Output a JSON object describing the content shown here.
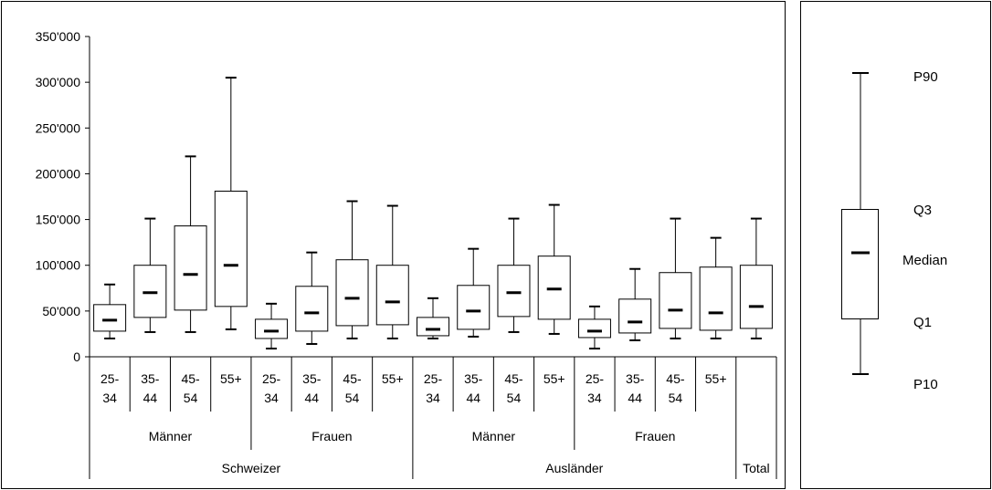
{
  "chart_data": {
    "type": "box",
    "y_ticks": [
      "0",
      "50'000",
      "100'000",
      "150'000",
      "200'000",
      "250'000",
      "300'000",
      "350'000"
    ],
    "ylim": [
      0,
      350000
    ],
    "grid": false,
    "boxes": [
      {
        "age": [
          "25-",
          "34"
        ],
        "p10": 20000,
        "q1": 28000,
        "median": 40000,
        "q3": 57000,
        "p90": 79000
      },
      {
        "age": [
          "35-",
          "44"
        ],
        "p10": 27000,
        "q1": 43000,
        "median": 70000,
        "q3": 100000,
        "p90": 151000
      },
      {
        "age": [
          "45-",
          "54"
        ],
        "p10": 27000,
        "q1": 51000,
        "median": 90000,
        "q3": 143000,
        "p90": 219000
      },
      {
        "age": [
          "55+"
        ],
        "p10": 30000,
        "q1": 55000,
        "median": 100000,
        "q3": 181000,
        "p90": 305000
      },
      {
        "age": [
          "25-",
          "34"
        ],
        "p10": 9000,
        "q1": 20000,
        "median": 28000,
        "q3": 41000,
        "p90": 58000
      },
      {
        "age": [
          "35-",
          "44"
        ],
        "p10": 14000,
        "q1": 28000,
        "median": 48000,
        "q3": 77000,
        "p90": 114000
      },
      {
        "age": [
          "45-",
          "54"
        ],
        "p10": 20000,
        "q1": 34000,
        "median": 64000,
        "q3": 106000,
        "p90": 170000
      },
      {
        "age": [
          "55+"
        ],
        "p10": 20000,
        "q1": 35000,
        "median": 60000,
        "q3": 100000,
        "p90": 165000
      },
      {
        "age": [
          "25-",
          "34"
        ],
        "p10": 20000,
        "q1": 23000,
        "median": 30000,
        "q3": 43000,
        "p90": 64000
      },
      {
        "age": [
          "35-",
          "44"
        ],
        "p10": 22000,
        "q1": 30000,
        "median": 50000,
        "q3": 78000,
        "p90": 118000
      },
      {
        "age": [
          "45-",
          "54"
        ],
        "p10": 27000,
        "q1": 44000,
        "median": 70000,
        "q3": 100000,
        "p90": 151000
      },
      {
        "age": [
          "55+"
        ],
        "p10": 25000,
        "q1": 41000,
        "median": 74000,
        "q3": 110000,
        "p90": 166000
      },
      {
        "age": [
          "25-",
          "34"
        ],
        "p10": 9000,
        "q1": 21000,
        "median": 28000,
        "q3": 41000,
        "p90": 55000
      },
      {
        "age": [
          "35-",
          "44"
        ],
        "p10": 18000,
        "q1": 26000,
        "median": 38000,
        "q3": 63000,
        "p90": 96000
      },
      {
        "age": [
          "45-",
          "54"
        ],
        "p10": 20000,
        "q1": 31000,
        "median": 51000,
        "q3": 92000,
        "p90": 151000
      },
      {
        "age": [
          "55+"
        ],
        "p10": 20000,
        "q1": 29000,
        "median": 48000,
        "q3": 98000,
        "p90": 130000
      },
      {
        "age": [
          ""
        ],
        "p10": 20000,
        "q1": 31000,
        "median": 55000,
        "q3": 100000,
        "p90": 151000
      }
    ],
    "sex_groups": [
      {
        "label": "Männer",
        "span": 4
      },
      {
        "label": "Frauen",
        "span": 4
      },
      {
        "label": "Männer",
        "span": 4
      },
      {
        "label": "Frauen",
        "span": 4
      },
      {
        "label": "",
        "span": 1
      }
    ],
    "nationality_groups": [
      {
        "label": "Schweizer",
        "span": 8
      },
      {
        "label": "Ausländer",
        "span": 8
      },
      {
        "label": "Total",
        "span": 1
      }
    ]
  },
  "legend": {
    "p90": "P90",
    "q3": "Q3",
    "median": "Median",
    "q1": "Q1",
    "p10": "P10"
  }
}
